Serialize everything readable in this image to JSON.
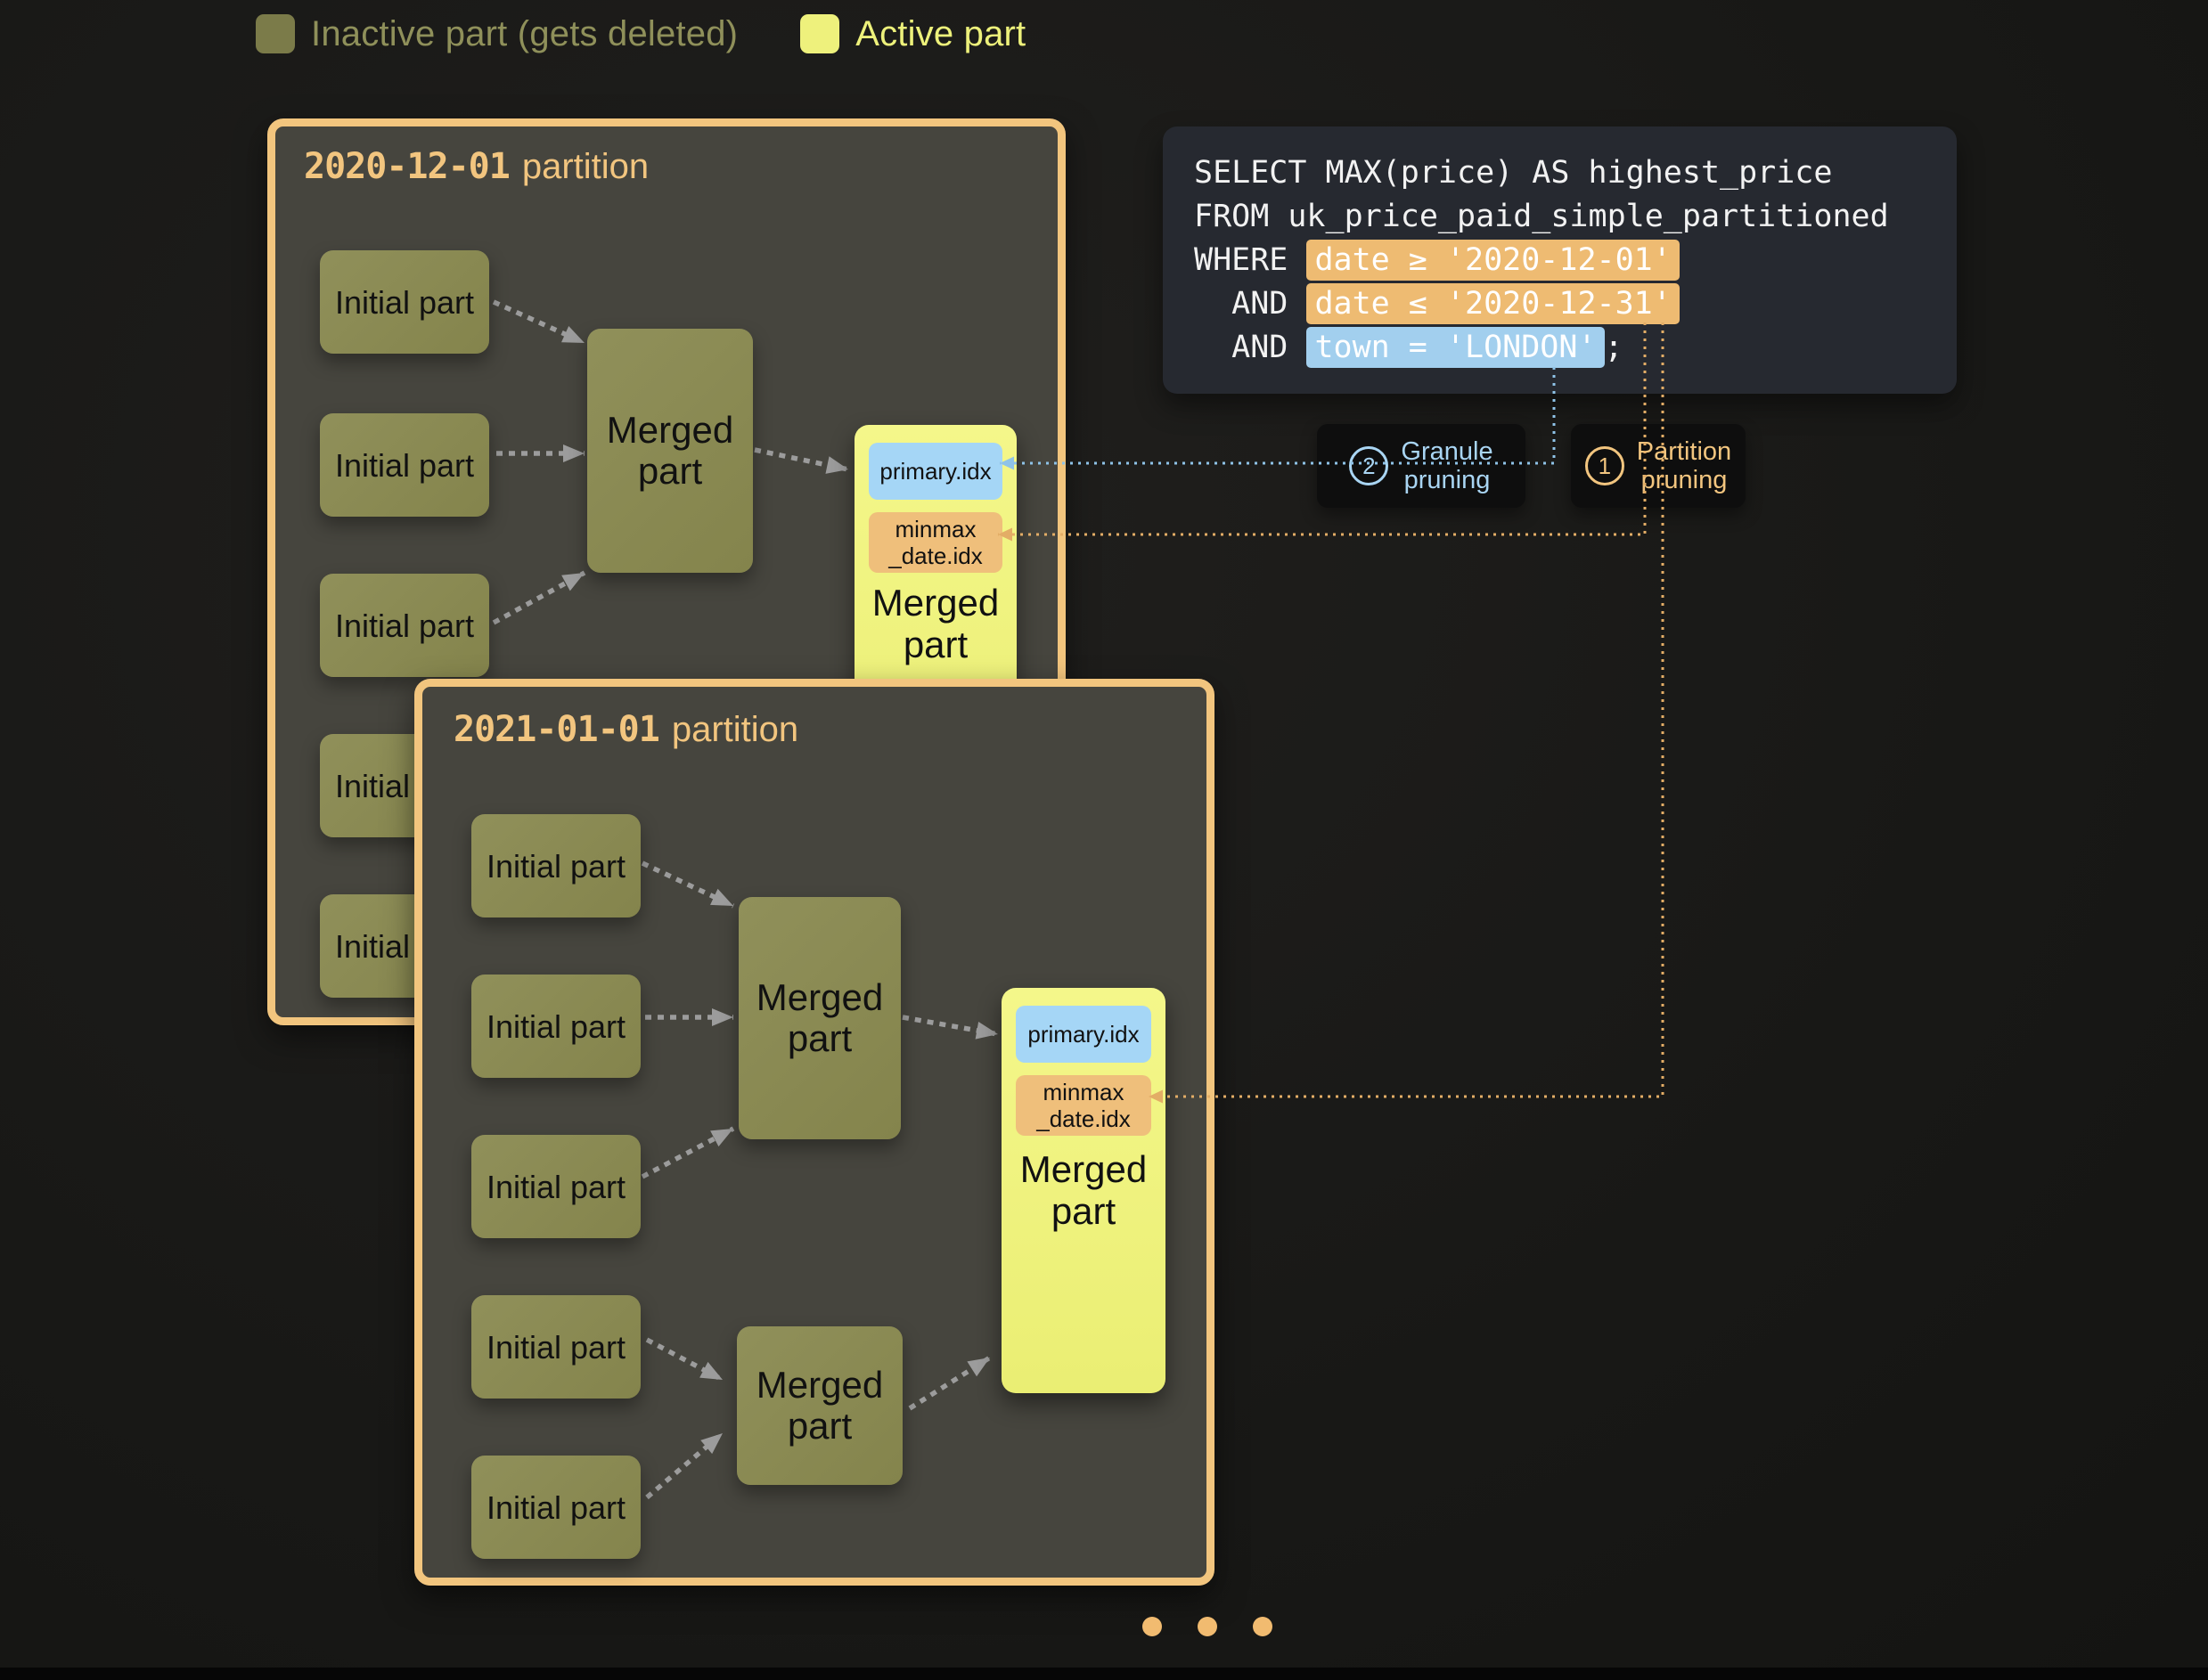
{
  "legend": {
    "inactive_label": "Inactive part (gets deleted)",
    "active_label": "Active part"
  },
  "partitions": [
    {
      "date": "2020-12-01",
      "suffix": "partition",
      "initial_parts": [
        "Initial part",
        "Initial part",
        "Initial part",
        "Initial part",
        "Initial part"
      ],
      "merged_parts_inactive": [
        "Merged part"
      ],
      "active_part": {
        "primary_index": "primary.idx",
        "minmax_index": "minmax\n_date.idx",
        "label": "Merged part"
      }
    },
    {
      "date": "2021-01-01",
      "suffix": "partition",
      "initial_parts": [
        "Initial part",
        "Initial part",
        "Initial part",
        "Initial part",
        "Initial part"
      ],
      "merged_parts_inactive": [
        "Merged part",
        "Merged part"
      ],
      "active_part": {
        "primary_index": "primary.idx",
        "minmax_index": "minmax\n_date.idx",
        "label": "Merged part"
      }
    }
  ],
  "sql": {
    "lines": [
      {
        "pre": "SELECT MAX(price) AS highest_price",
        "hl": "",
        "post": ""
      },
      {
        "pre": "FROM uk_price_paid_simple_partitioned",
        "hl": "",
        "post": ""
      },
      {
        "pre": "WHERE ",
        "hl": "date ≥ '2020-12-01'",
        "hl_type": "orange",
        "post": ""
      },
      {
        "pre": "  AND ",
        "hl": "date ≤ '2020-12-31'",
        "hl_type": "orange",
        "post": ""
      },
      {
        "pre": "  AND ",
        "hl": "town = 'LONDON'",
        "hl_type": "blue",
        "post": ";"
      }
    ]
  },
  "annotations": {
    "granule": {
      "number": "2",
      "line1": "Granule",
      "line2": "pruning"
    },
    "partition": {
      "number": "1",
      "line1": "Partition",
      "line2": "pruning"
    }
  },
  "carousel": {
    "dot_count": 3
  },
  "colors": {
    "partition_border": "#f2c57e",
    "inactive_part": "#8b8b51",
    "active_part": "#eef17c",
    "primary_idx": "#a5d6f6",
    "minmax_idx": "#efbf7b",
    "highlight_orange": "#eebb72",
    "highlight_blue": "#a2cfee",
    "granule_accent": "#a9d5f3",
    "partition_accent": "#f2c57f"
  }
}
